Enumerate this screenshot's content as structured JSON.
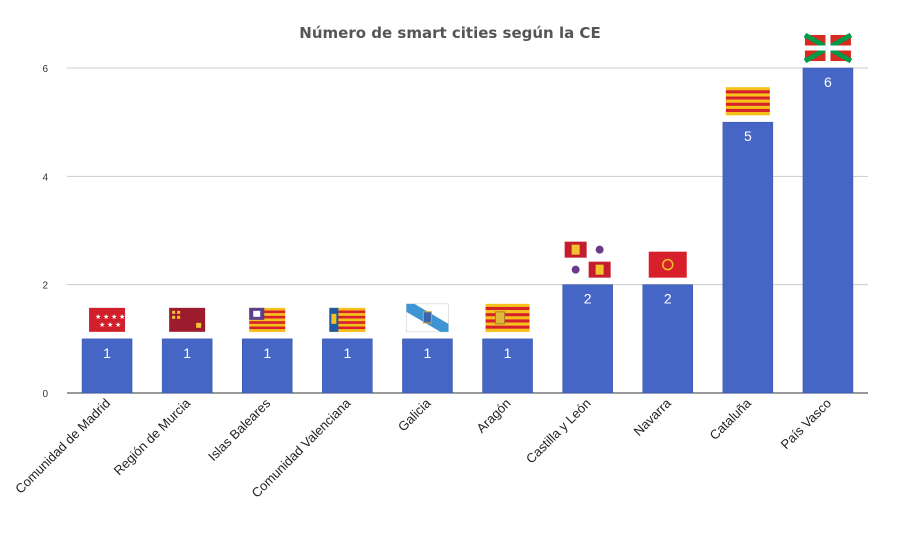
{
  "chart_data": {
    "type": "bar",
    "title": "Número de smart cities según la CE",
    "xlabel": "",
    "ylabel": "",
    "categories": [
      "Comunidad de Madrid",
      "Región de Murcia",
      "Islas Baleares",
      "Comunidad Valenciana",
      "Galicia",
      "Aragón",
      "Castilla y León",
      "Navarra",
      "Cataluña",
      "País Vasco"
    ],
    "values": [
      1,
      1,
      1,
      1,
      1,
      1,
      2,
      2,
      5,
      6
    ],
    "data_labels": [
      "1",
      "1",
      "1",
      "1",
      "1",
      "1",
      "2",
      "2",
      "5",
      "6"
    ],
    "ylim": [
      0,
      6
    ],
    "yticks": [
      0,
      2,
      4,
      6
    ],
    "grid": true,
    "legend": "none",
    "bar_color": "#4566c4",
    "flag_icons": [
      "madrid-flag-icon",
      "murcia-flag-icon",
      "baleares-flag-icon",
      "valencia-flag-icon",
      "galicia-flag-icon",
      "aragon-flag-icon",
      "castilla-leon-flag-icon",
      "navarra-flag-icon",
      "cataluna-flag-icon",
      "pais-vasco-flag-icon"
    ]
  }
}
